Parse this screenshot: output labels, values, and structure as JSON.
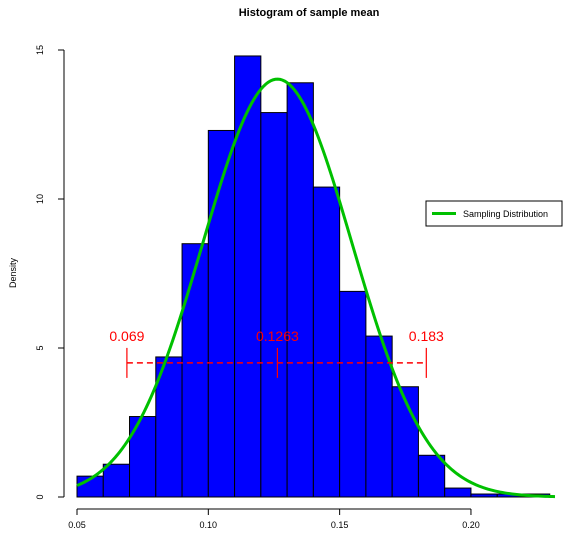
{
  "chart_data": {
    "type": "histogram",
    "title": "Histogram of sample mean",
    "xlabel": "",
    "ylabel": "Density",
    "xlim": [
      0.05,
      0.232
    ],
    "ylim": [
      0,
      15
    ],
    "x_ticks": [
      0.05,
      0.1,
      0.15,
      0.2
    ],
    "x_tick_labels": [
      "0.05",
      "0.10",
      "0.15",
      "0.20"
    ],
    "y_ticks": [
      0,
      5,
      10,
      15
    ],
    "y_tick_labels": [
      "0",
      "5",
      "10",
      "15"
    ],
    "bin_width": 0.01,
    "bins": [
      {
        "from": 0.05,
        "to": 0.06,
        "density": 0.7
      },
      {
        "from": 0.06,
        "to": 0.07,
        "density": 1.1
      },
      {
        "from": 0.07,
        "to": 0.08,
        "density": 2.7
      },
      {
        "from": 0.08,
        "to": 0.09,
        "density": 4.7
      },
      {
        "from": 0.09,
        "to": 0.1,
        "density": 8.5
      },
      {
        "from": 0.1,
        "to": 0.11,
        "density": 12.3
      },
      {
        "from": 0.11,
        "to": 0.12,
        "density": 14.8
      },
      {
        "from": 0.12,
        "to": 0.13,
        "density": 12.9
      },
      {
        "from": 0.13,
        "to": 0.14,
        "density": 13.9
      },
      {
        "from": 0.14,
        "to": 0.15,
        "density": 10.4
      },
      {
        "from": 0.15,
        "to": 0.16,
        "density": 6.9
      },
      {
        "from": 0.16,
        "to": 0.17,
        "density": 5.4
      },
      {
        "from": 0.17,
        "to": 0.18,
        "density": 3.7
      },
      {
        "from": 0.18,
        "to": 0.19,
        "density": 1.4
      },
      {
        "from": 0.19,
        "to": 0.2,
        "density": 0.3
      },
      {
        "from": 0.2,
        "to": 0.21,
        "density": 0.1
      },
      {
        "from": 0.21,
        "to": 0.22,
        "density": 0.1
      },
      {
        "from": 0.22,
        "to": 0.23,
        "density": 0.1
      }
    ],
    "bar_color": "#0000ff",
    "curve": {
      "name": "Sampling Distribution",
      "color": "#00c000",
      "mean": 0.1263,
      "sd": 0.02845
    },
    "interval": {
      "lower": 0.069,
      "mean": 0.1263,
      "upper": 0.183,
      "y": 4.5,
      "color": "#ff0000",
      "labels": [
        "0.069",
        "0.1263",
        "0.183"
      ]
    },
    "legend": {
      "position": "right",
      "entries": [
        "Sampling Distribution"
      ]
    },
    "grid": false
  }
}
